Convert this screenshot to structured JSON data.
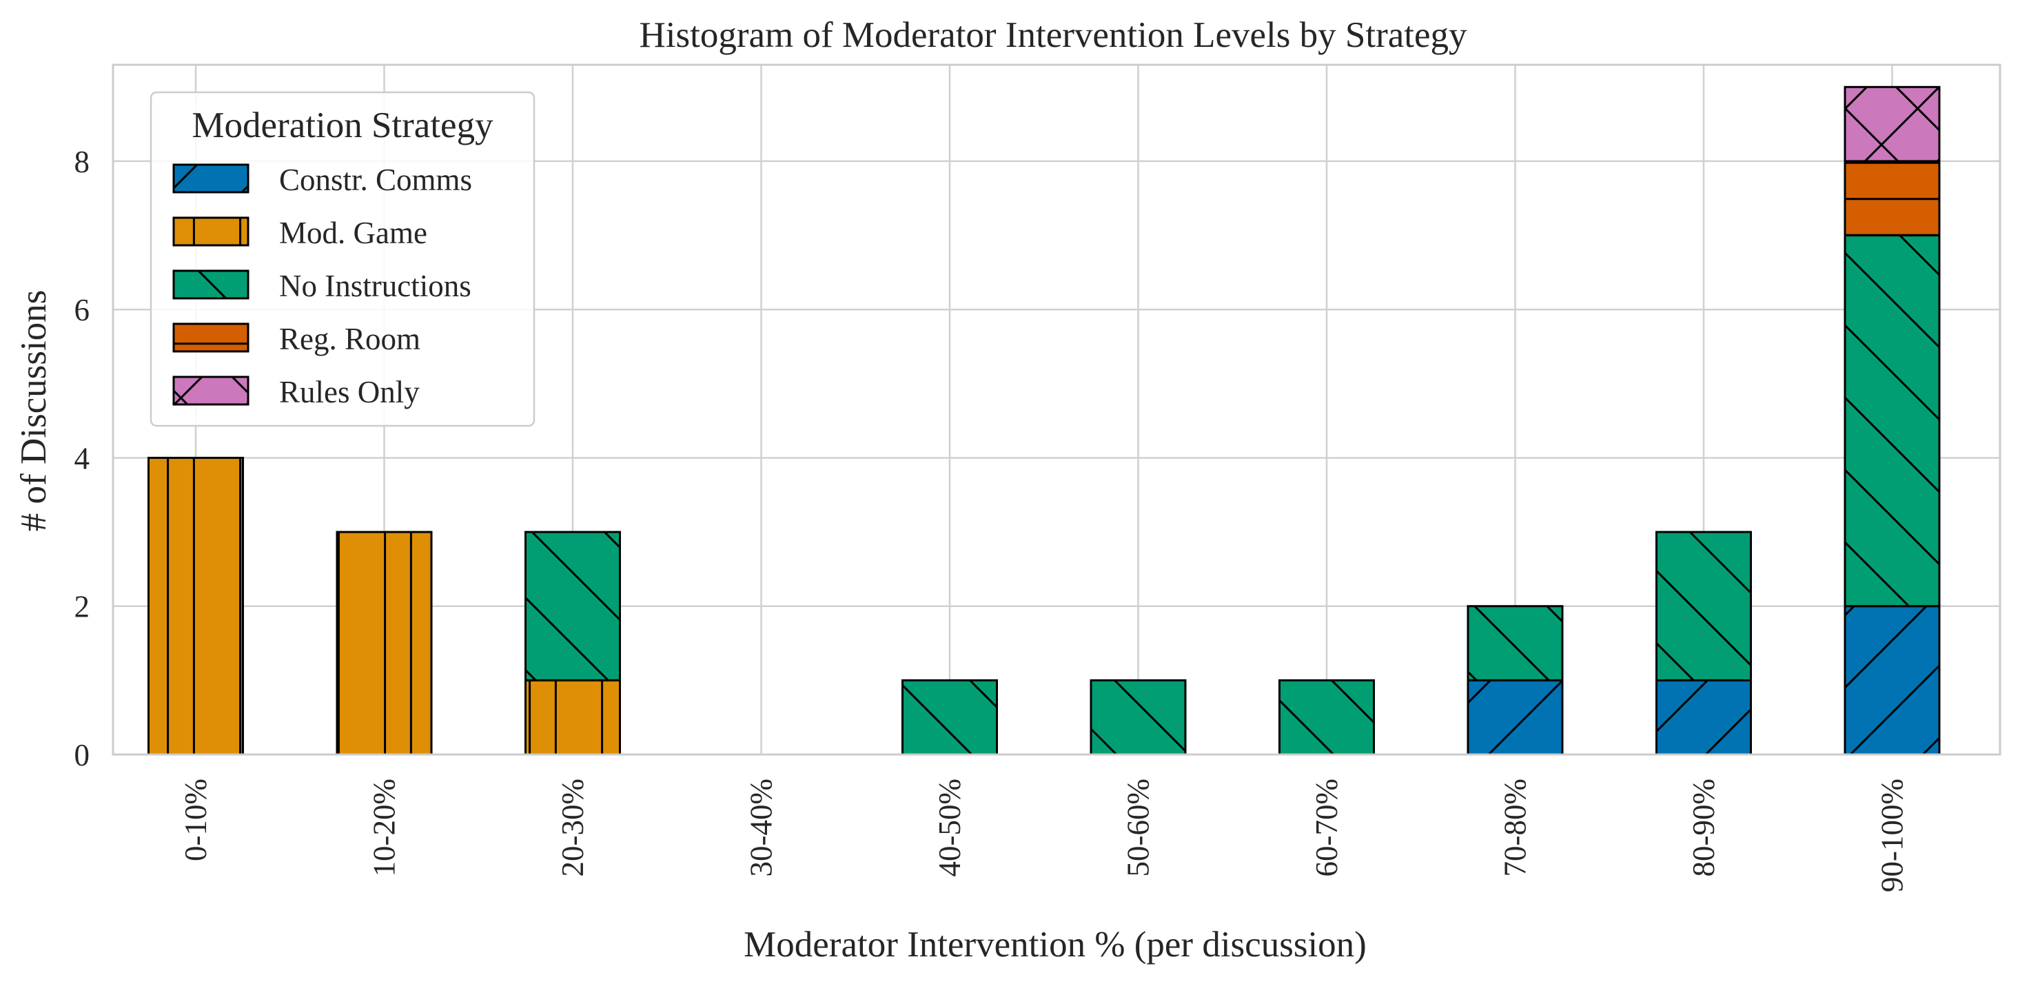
{
  "chart_data": {
    "type": "bar",
    "stacked": true,
    "title": "Histogram of Moderator Intervention Levels by Strategy",
    "xlabel": "Moderator Intervention % (per discussion)",
    "ylabel": "# of Discussions",
    "categories": [
      "0-10%",
      "10-20%",
      "20-30%",
      "30-40%",
      "40-50%",
      "50-60%",
      "60-70%",
      "70-80%",
      "80-90%",
      "90-100%"
    ],
    "ylim": [
      0,
      9.3
    ],
    "yticks": [
      0,
      2,
      4,
      6,
      8
    ],
    "grid": true,
    "legend": {
      "title": "Moderation Strategy",
      "position": "upper-left"
    },
    "series": [
      {
        "name": "Constr. Comms",
        "color": "#0173b2",
        "hatch": "forward-diagonal",
        "values": [
          0,
          0,
          0,
          0,
          0,
          0,
          0,
          1,
          1,
          2
        ]
      },
      {
        "name": "Mod. Game",
        "color": "#de8f05",
        "hatch": "vertical",
        "values": [
          4,
          3,
          1,
          0,
          0,
          0,
          0,
          0,
          0,
          0
        ]
      },
      {
        "name": "No Instructions",
        "color": "#029e73",
        "hatch": "back-diagonal",
        "values": [
          0,
          0,
          2,
          0,
          1,
          1,
          1,
          1,
          2,
          5
        ]
      },
      {
        "name": "Reg. Room",
        "color": "#d55e00",
        "hatch": "horizontal",
        "values": [
          0,
          0,
          0,
          0,
          0,
          0,
          0,
          0,
          0,
          1
        ]
      },
      {
        "name": "Rules Only",
        "color": "#cc78bc",
        "hatch": "cross-diagonal",
        "values": [
          0,
          0,
          0,
          0,
          0,
          0,
          0,
          0,
          0,
          1
        ]
      }
    ]
  }
}
